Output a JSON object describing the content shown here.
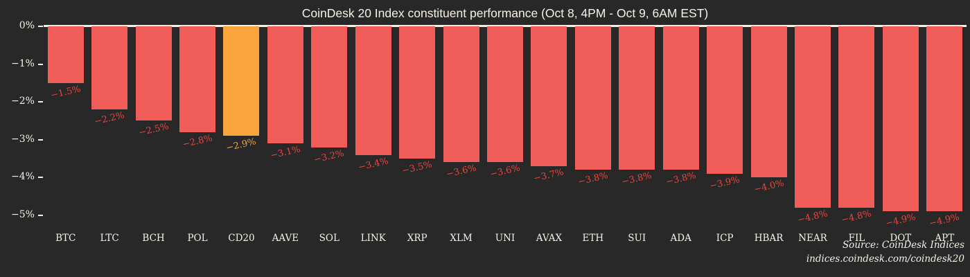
{
  "figure": {
    "title": "CoinDesk 20 Index constituent performance (Oct 8, 4PM - Oct 9, 6AM EST)",
    "source": {
      "line1": "Source: CoinDesk Indices",
      "line2": "indices.coindesk.com/coindesk20"
    },
    "colors": {
      "background": "#282828",
      "bar": "#f15e59",
      "bar_highlight": "#f9a43d",
      "value_label": "#ee443e",
      "value_label_highlight": "#f9a43d",
      "axis_line": "#f6f1e7",
      "text": "#f6f1e7"
    }
  },
  "chart_data": {
    "type": "bar",
    "title": "CoinDesk 20 Index constituent performance (Oct 8, 4PM - Oct 9, 6AM EST)",
    "categories": [
      "BTC",
      "LTC",
      "BCH",
      "POL",
      "CD20",
      "AAVE",
      "SOL",
      "LINK",
      "XRP",
      "XLM",
      "UNI",
      "AVAX",
      "ETH",
      "SUI",
      "ADA",
      "ICP",
      "HBAR",
      "NEAR",
      "FIL",
      "DOT",
      "APT"
    ],
    "values": [
      -1.5,
      -2.2,
      -2.5,
      -2.8,
      -2.9,
      -3.1,
      -3.2,
      -3.4,
      -3.5,
      -3.6,
      -3.6,
      -3.7,
      -3.8,
      -3.8,
      -3.8,
      -3.9,
      -4.0,
      -4.8,
      -4.8,
      -4.9,
      -4.9
    ],
    "value_labels": [
      "−1.5%",
      "−2.2%",
      "−2.5%",
      "−2.8%",
      "−2.9%",
      "−3.1%",
      "−3.2%",
      "−3.4%",
      "−3.5%",
      "−3.6%",
      "−3.6%",
      "−3.7%",
      "−3.8%",
      "−3.8%",
      "−3.8%",
      "−3.9%",
      "−4.0%",
      "−4.8%",
      "−4.8%",
      "−4.9%",
      "−4.9%"
    ],
    "highlight_category": "CD20",
    "highlight_index": 4,
    "xlabel": "",
    "ylabel": "",
    "ylim": [
      -5.35,
      0
    ],
    "yticks": [
      0,
      -1,
      -2,
      -3,
      -4,
      -5
    ],
    "ytick_labels": [
      "0%",
      "−1%",
      "−2%",
      "−3%",
      "−4%",
      "−5%"
    ],
    "grid": false,
    "legend": null,
    "source": "Source: CoinDesk Indices — indices.coindesk.com/coindesk20"
  }
}
